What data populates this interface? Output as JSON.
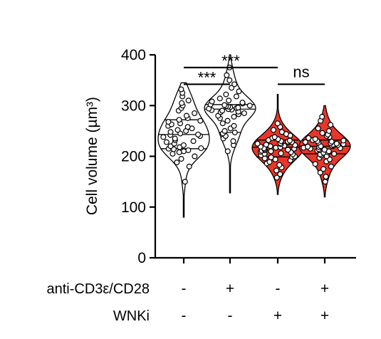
{
  "chart_data": {
    "type": "violin",
    "ylabel": "Cell volume (µm³)",
    "ylim": [
      0,
      400
    ],
    "yticks": [
      0,
      100,
      200,
      300,
      400
    ],
    "groups": [
      {
        "fill": "#ffffff",
        "median": 243,
        "q1": 215,
        "q3": 272,
        "min": 80,
        "max": 345,
        "values": [
          150,
          180,
          188,
          195,
          200,
          205,
          208,
          210,
          212,
          214,
          215,
          216,
          218,
          220,
          222,
          225,
          228,
          230,
          232,
          235,
          238,
          240,
          242,
          243,
          245,
          248,
          250,
          252,
          255,
          258,
          260,
          263,
          265,
          268,
          270,
          272,
          275,
          280,
          285,
          290,
          295,
          300,
          305,
          310,
          318,
          325,
          332
        ]
      },
      {
        "fill": "#ffffff",
        "median": 293,
        "q1": 247,
        "q3": 302,
        "min": 128,
        "max": 400,
        "values": [
          210,
          222,
          230,
          235,
          240,
          245,
          247,
          250,
          255,
          260,
          265,
          270,
          275,
          278,
          280,
          283,
          285,
          287,
          288,
          290,
          291,
          292,
          293,
          294,
          295,
          296,
          297,
          298,
          299,
          300,
          301,
          302,
          304,
          306,
          308,
          310,
          314,
          318,
          322,
          328,
          335,
          342,
          350,
          360,
          375
        ]
      },
      {
        "fill": "#e8362a",
        "median": 218,
        "q1": 199,
        "q3": 232,
        "min": 125,
        "max": 322,
        "values": [
          158,
          165,
          172,
          178,
          183,
          186,
          189,
          192,
          194,
          196,
          198,
          199,
          200,
          202,
          204,
          205,
          206,
          208,
          209,
          210,
          211,
          212,
          213,
          214,
          215,
          216,
          217,
          218,
          219,
          220,
          221,
          222,
          223,
          224,
          225,
          226,
          227,
          228,
          229,
          230,
          231,
          232,
          234,
          236,
          238,
          241,
          244,
          248,
          252,
          258,
          265
        ]
      },
      {
        "fill": "#e8362a",
        "median": 220,
        "q1": 205,
        "q3": 232,
        "min": 120,
        "max": 300,
        "values": [
          150,
          160,
          168,
          175,
          180,
          185,
          190,
          194,
          197,
          200,
          202,
          204,
          205,
          207,
          208,
          210,
          211,
          212,
          213,
          214,
          215,
          216,
          217,
          218,
          219,
          220,
          220,
          221,
          222,
          223,
          224,
          225,
          226,
          227,
          228,
          229,
          230,
          231,
          232,
          234,
          236,
          238,
          240,
          243,
          246,
          250,
          255,
          262,
          270,
          278
        ]
      }
    ],
    "conditions": [
      {
        "label": "anti-CD3ε/CD28",
        "signs": [
          "-",
          "+",
          "-",
          "+"
        ]
      },
      {
        "label": "WNKi",
        "signs": [
          "-",
          "-",
          "+",
          "+"
        ]
      }
    ],
    "significance": [
      {
        "from": 0,
        "to": 2,
        "label": "***",
        "y": 375
      },
      {
        "from": 0,
        "to": 1,
        "label": "***",
        "y": 342
      },
      {
        "from": 2,
        "to": 3,
        "label": "ns",
        "y": 342
      }
    ]
  }
}
